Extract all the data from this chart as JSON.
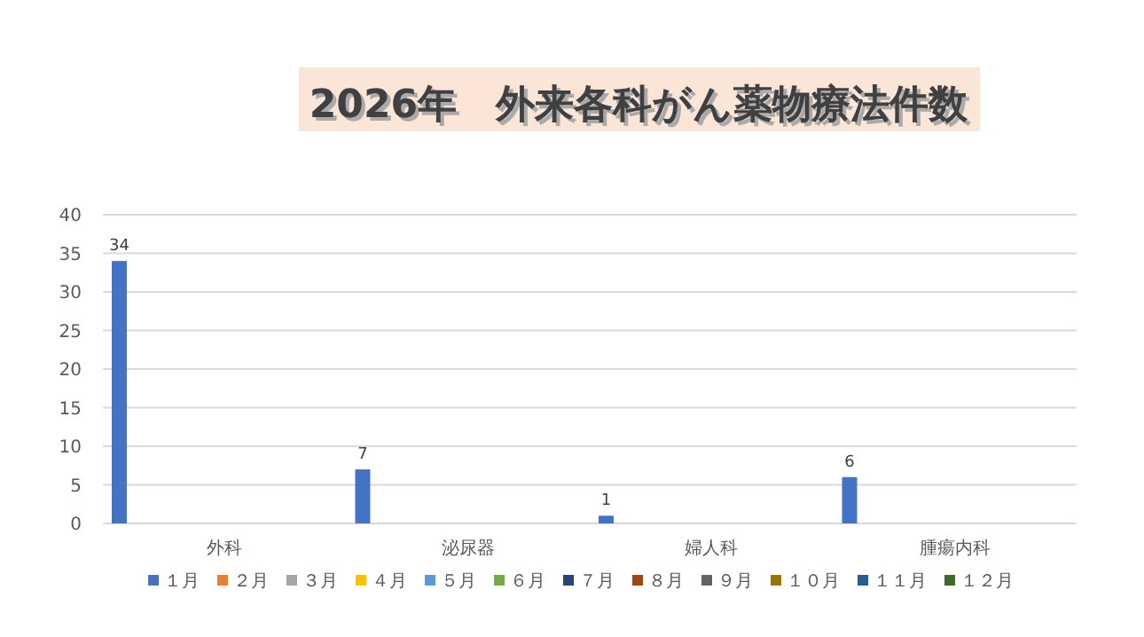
{
  "chart_data": {
    "type": "bar",
    "title": "2026年　外来各科がん薬物療法件数",
    "categories": [
      "外科",
      "泌尿器",
      "婦人科",
      "腫瘍内科"
    ],
    "series": [
      {
        "name": "１月",
        "color": "#4472c4",
        "values": [
          34,
          7,
          1,
          6
        ]
      },
      {
        "name": "２月",
        "color": "#ed7d31",
        "values": [
          null,
          null,
          null,
          null
        ]
      },
      {
        "name": "３月",
        "color": "#a5a5a5",
        "values": [
          null,
          null,
          null,
          null
        ]
      },
      {
        "name": "４月",
        "color": "#ffc000",
        "values": [
          null,
          null,
          null,
          null
        ]
      },
      {
        "name": "５月",
        "color": "#5b9bd5",
        "values": [
          null,
          null,
          null,
          null
        ]
      },
      {
        "name": "６月",
        "color": "#70ad47",
        "values": [
          null,
          null,
          null,
          null
        ]
      },
      {
        "name": "７月",
        "color": "#264478",
        "values": [
          null,
          null,
          null,
          null
        ]
      },
      {
        "name": "８月",
        "color": "#9e480e",
        "values": [
          null,
          null,
          null,
          null
        ]
      },
      {
        "name": "９月",
        "color": "#636363",
        "values": [
          null,
          null,
          null,
          null
        ]
      },
      {
        "name": "１０月",
        "color": "#997300",
        "values": [
          null,
          null,
          null,
          null
        ]
      },
      {
        "name": "１１月",
        "color": "#255e91",
        "values": [
          null,
          null,
          null,
          null
        ]
      },
      {
        "name": "１２月",
        "color": "#43682b",
        "values": [
          null,
          null,
          null,
          null
        ]
      }
    ],
    "ylim": [
      0,
      40
    ],
    "yticks": [
      0,
      5,
      10,
      15,
      20,
      25,
      30,
      35,
      40
    ],
    "grid": "y",
    "legend": "bottom",
    "data_labels": true
  }
}
